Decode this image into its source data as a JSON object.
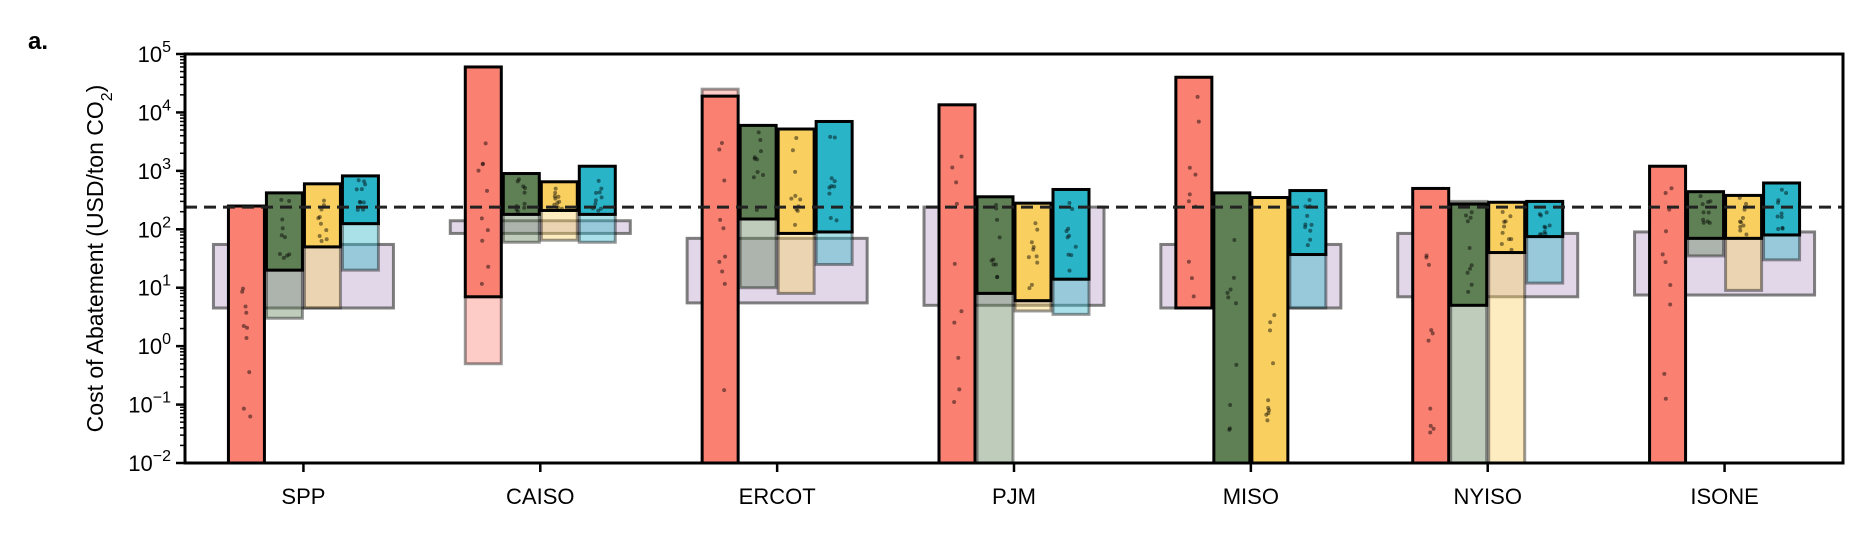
{
  "panel_label": "a.",
  "chart_data": {
    "type": "bar",
    "scale": "log",
    "ylabel": "Cost of Abatement (USD/ton CO",
    "ylabel_sub": "2",
    "ylabel_end": ")",
    "ylim": [
      0.01,
      100000
    ],
    "yticks": [
      {
        "value": 0.01,
        "base": "10",
        "exp": "−2"
      },
      {
        "value": 0.1,
        "base": "10",
        "exp": "−1"
      },
      {
        "value": 1,
        "base": "10",
        "exp": "0"
      },
      {
        "value": 10,
        "base": "10",
        "exp": "1"
      },
      {
        "value": 100,
        "base": "10",
        "exp": "2"
      },
      {
        "value": 1000,
        "base": "10",
        "exp": "3"
      },
      {
        "value": 10000,
        "base": "10",
        "exp": "4"
      },
      {
        "value": 100000,
        "base": "10",
        "exp": "5"
      }
    ],
    "reference_line": 240,
    "categories": [
      "SPP",
      "CAISO",
      "ERCOT",
      "PJM",
      "MISO",
      "NYISO",
      "ISONE"
    ],
    "series_colors": [
      "#fa8072",
      "#5f7f55",
      "#f9d060",
      "#2ab4c8"
    ],
    "background_color": "#c9b6d6",
    "groups": [
      {
        "bg": [
          4.5,
          55
        ],
        "bars": [
          [
            0.01,
            250
          ],
          [
            20,
            420
          ],
          [
            50,
            600
          ],
          [
            125,
            820
          ]
        ],
        "ghosts": [
          null,
          [
            3,
            20
          ],
          [
            4.5,
            50
          ],
          [
            20,
            125
          ]
        ]
      },
      {
        "bg": [
          85,
          140
        ],
        "bars": [
          [
            7,
            60000
          ],
          [
            180,
            900
          ],
          [
            210,
            650
          ],
          [
            180,
            1200
          ]
        ],
        "ghosts": [
          [
            0.5,
            7
          ],
          [
            60,
            180
          ],
          [
            65,
            210
          ],
          [
            60,
            180
          ]
        ]
      },
      {
        "bg": [
          5.5,
          70
        ],
        "bars": [
          [
            0.01,
            19000
          ],
          [
            150,
            6000
          ],
          [
            85,
            5200
          ],
          [
            90,
            7000
          ]
        ],
        "ghosts": [
          [
            19000,
            25000
          ],
          [
            10,
            150
          ],
          [
            8,
            85
          ],
          [
            25,
            90
          ]
        ]
      },
      {
        "bg": [
          5,
          240
        ],
        "bars": [
          [
            0.01,
            13500
          ],
          [
            8,
            360
          ],
          [
            6,
            280
          ],
          [
            14,
            480
          ]
        ],
        "ghosts": [
          null,
          [
            0.01,
            8
          ],
          [
            4,
            6
          ],
          [
            3.5,
            14
          ]
        ]
      },
      {
        "bg": [
          4.5,
          55
        ],
        "bars": [
          [
            4.5,
            40000
          ],
          [
            0.01,
            420
          ],
          [
            0.01,
            350
          ],
          [
            37,
            460
          ]
        ],
        "ghosts": [
          null,
          null,
          null,
          [
            4.5,
            37
          ]
        ]
      },
      {
        "bg": [
          7,
          85
        ],
        "bars": [
          [
            0.01,
            500
          ],
          [
            5,
            270
          ],
          [
            40,
            290
          ],
          [
            75,
            300
          ]
        ],
        "ghosts": [
          null,
          [
            0.01,
            300
          ],
          [
            0.01,
            40
          ],
          [
            12,
            75
          ]
        ]
      },
      {
        "bg": [
          7.5,
          90
        ],
        "bars": [
          [
            0.01,
            1200
          ],
          [
            70,
            440
          ],
          [
            70,
            380
          ],
          [
            80,
            620
          ]
        ],
        "ghosts": [
          null,
          [
            35,
            70
          ],
          [
            9,
            70
          ],
          [
            30,
            80
          ]
        ]
      }
    ]
  }
}
